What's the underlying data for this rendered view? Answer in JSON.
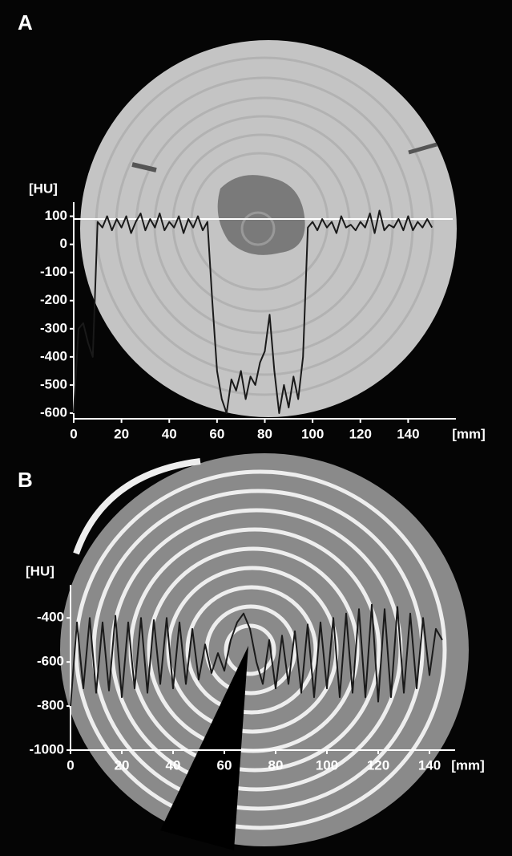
{
  "chart_data": [
    {
      "type": "line",
      "label": "A",
      "y_label": "[HU]",
      "x_label": "[mm]",
      "x": [
        0,
        2,
        4,
        6,
        8,
        10,
        12,
        14,
        16,
        18,
        20,
        22,
        24,
        26,
        28,
        30,
        32,
        34,
        36,
        38,
        40,
        42,
        44,
        46,
        48,
        50,
        52,
        54,
        56,
        58,
        60,
        62,
        64,
        66,
        68,
        70,
        72,
        74,
        76,
        78,
        80,
        82,
        84,
        86,
        88,
        90,
        92,
        94,
        96,
        98,
        100,
        102,
        104,
        106,
        108,
        110,
        112,
        114,
        116,
        118,
        120,
        122,
        124,
        126,
        128,
        130,
        132,
        134,
        136,
        138,
        140,
        142,
        144,
        146,
        148,
        150
      ],
      "series": [
        {
          "color": "#1a1a1a",
          "values": [
            -600,
            -300,
            -280,
            -350,
            -400,
            80,
            60,
            100,
            50,
            90,
            60,
            100,
            40,
            80,
            110,
            50,
            90,
            60,
            110,
            50,
            80,
            60,
            100,
            40,
            90,
            60,
            100,
            50,
            80,
            -200,
            -450,
            -550,
            -600,
            -480,
            -520,
            -450,
            -550,
            -470,
            -500,
            -420,
            -380,
            -250,
            -450,
            -600,
            -500,
            -580,
            -470,
            -550,
            -400,
            60,
            80,
            50,
            90,
            60,
            80,
            40,
            100,
            60,
            70,
            50,
            80,
            60,
            110,
            40,
            120,
            50,
            70,
            60,
            90,
            50,
            100,
            50,
            80,
            60,
            90,
            60
          ]
        }
      ],
      "xlim": [
        0,
        160
      ],
      "xticks": [
        0,
        20,
        40,
        60,
        80,
        100,
        120,
        140
      ],
      "ylim": [
        -620,
        150
      ],
      "yticks": [
        100,
        0,
        -100,
        -200,
        -300,
        -400,
        -500,
        -600
      ]
    },
    {
      "type": "line",
      "label": "B",
      "y_label": "[HU]",
      "x_label": "[mm]",
      "x": [
        0,
        2.5,
        5,
        7.5,
        10,
        12.5,
        15,
        17.5,
        20,
        22.5,
        25,
        27.5,
        30,
        32.5,
        35,
        37.5,
        40,
        42.5,
        45,
        47.5,
        50,
        52.5,
        55,
        57.5,
        60,
        62.5,
        65,
        67.5,
        70,
        72.5,
        75,
        77.5,
        80,
        82.5,
        85,
        87.5,
        90,
        92.5,
        95,
        97.5,
        100,
        102.5,
        105,
        107.5,
        110,
        112.5,
        115,
        117.5,
        120,
        122.5,
        125,
        127.5,
        130,
        132.5,
        135,
        137.5,
        140,
        142.5,
        145
      ],
      "series": [
        {
          "color": "#1a1a1a",
          "values": [
            -800,
            -420,
            -720,
            -400,
            -740,
            -420,
            -730,
            -390,
            -760,
            -420,
            -720,
            -400,
            -740,
            -410,
            -700,
            -400,
            -720,
            -420,
            -700,
            -450,
            -680,
            -520,
            -650,
            -560,
            -640,
            -500,
            -420,
            -380,
            -450,
            -600,
            -700,
            -500,
            -720,
            -480,
            -700,
            -460,
            -740,
            -430,
            -760,
            -420,
            -720,
            -400,
            -760,
            -380,
            -740,
            -360,
            -760,
            -340,
            -780,
            -360,
            -760,
            -350,
            -740,
            -380,
            -720,
            -400,
            -660,
            -450,
            -500
          ]
        }
      ],
      "xlim": [
        0,
        150
      ],
      "xticks": [
        0,
        20,
        40,
        60,
        80,
        100,
        120,
        140
      ],
      "ylim": [
        -1000,
        -250
      ],
      "yticks": [
        -400,
        -600,
        -800,
        -1000
      ]
    }
  ]
}
